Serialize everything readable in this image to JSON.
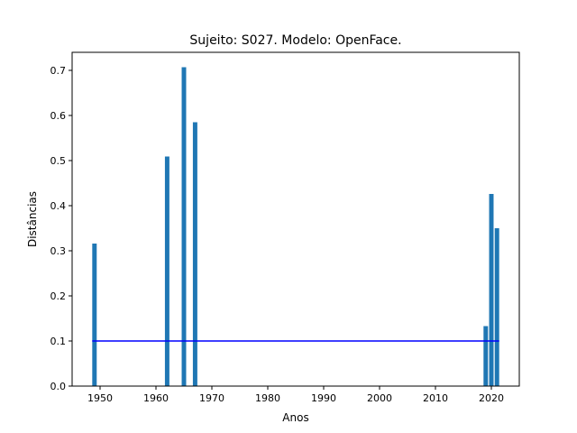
{
  "chart_data": {
    "type": "bar",
    "title": "Sujeito: S027. Modelo: OpenFace.",
    "xlabel": "Anos",
    "ylabel": "Distâncias",
    "xlim": [
      1945,
      2025
    ],
    "ylim": [
      0,
      0.74
    ],
    "xticks": [
      1950,
      1960,
      1970,
      1980,
      1990,
      2000,
      2010,
      2020
    ],
    "yticks": [
      "0.0",
      "0.1",
      "0.2",
      "0.3",
      "0.4",
      "0.5",
      "0.6",
      "0.7"
    ],
    "bar_color": "#1f77b4",
    "bars": [
      {
        "x": 1949,
        "value": 0.316
      },
      {
        "x": 1962,
        "value": 0.509
      },
      {
        "x": 1965,
        "value": 0.707
      },
      {
        "x": 1967,
        "value": 0.585
      },
      {
        "x": 2019,
        "value": 0.133
      },
      {
        "x": 2020,
        "value": 0.426
      },
      {
        "x": 2021,
        "value": 0.35
      }
    ],
    "reference_line": {
      "value": 0.1,
      "from_x": 1949,
      "to_x": 2021,
      "color": "#0000ff"
    },
    "grid": false,
    "legend": "none"
  }
}
